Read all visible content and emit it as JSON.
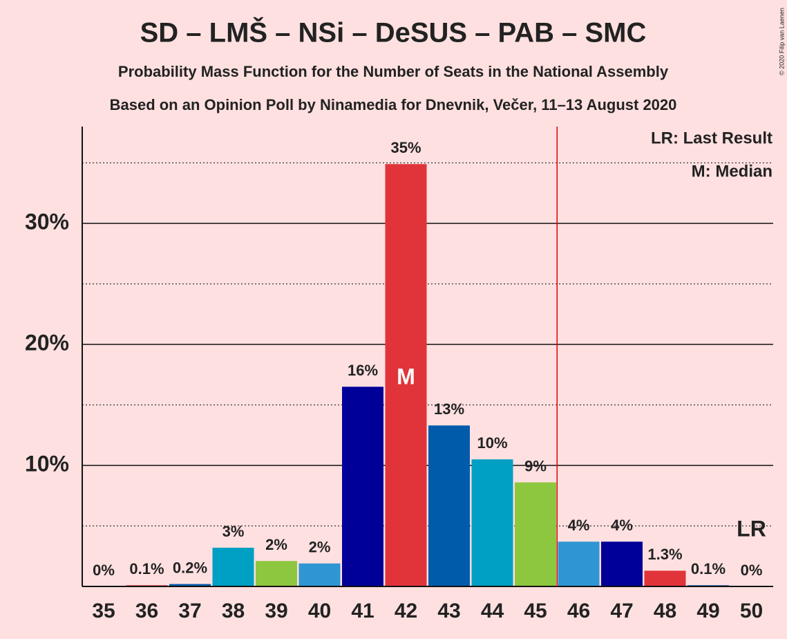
{
  "chart_data": {
    "type": "bar",
    "title": "SD – LMŠ – NSi – DeSUS – PAB – SMC",
    "subtitle": "Probability Mass Function for the Number of Seats in the National Assembly",
    "subtitle2": "Based on an Opinion Poll by Ninamedia for Dnevnik, Večer, 11–13 August 2020",
    "copyright": "© 2020 Filip van Laenen",
    "legend": [
      "LR: Last Result",
      "M: Median"
    ],
    "median_label": "M",
    "last_result_label": "LR",
    "median": 42,
    "last_result": 50,
    "majority_line": 45.5,
    "categories": [
      35,
      36,
      37,
      38,
      39,
      40,
      41,
      42,
      43,
      44,
      45,
      46,
      47,
      48,
      49,
      50
    ],
    "values": [
      0,
      0.1,
      0.2,
      3.2,
      2.1,
      1.9,
      16.5,
      34.9,
      13.3,
      10.5,
      8.6,
      3.7,
      3.7,
      1.3,
      0.1,
      0
    ],
    "value_labels": [
      "0%",
      "0.1%",
      "0.2%",
      "3%",
      "2%",
      "2%",
      "16%",
      "35%",
      "13%",
      "10%",
      "9%",
      "4%",
      "4%",
      "1.3%",
      "0.1%",
      "0%"
    ],
    "colors": [
      "#000099",
      "#e0343a",
      "#005bab",
      "#009fc4",
      "#8dc63f",
      "#2f96d3",
      "#000099",
      "#e0343a",
      "#005bab",
      "#009fc4",
      "#8dc63f",
      "#2f96d3",
      "#000099",
      "#e0343a",
      "#005bab",
      "#009fc4"
    ],
    "ylim": [
      0,
      38
    ],
    "yticks": [
      {
        "value": 10,
        "label": "10%"
      },
      {
        "value": 20,
        "label": "20%"
      },
      {
        "value": 30,
        "label": "30%"
      }
    ],
    "minor_yticks": [
      5,
      15,
      25,
      35
    ],
    "grid": true
  }
}
